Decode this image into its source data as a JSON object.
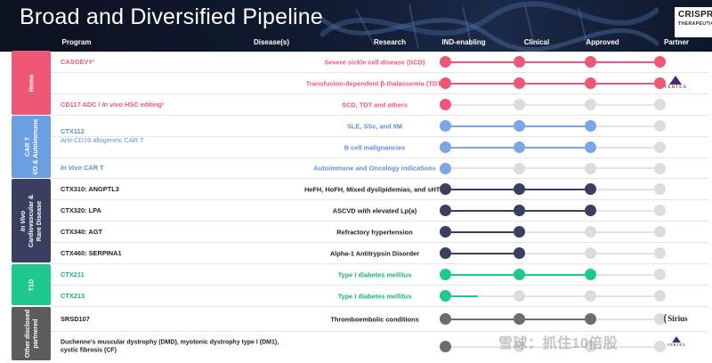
{
  "header": {
    "title": "Broad and Diversified Pipeline"
  },
  "logo": {
    "line1": "CRISPR",
    "line2": "THERAPEUTICS"
  },
  "columns": {
    "program": "Program",
    "disease": "Disease(s)",
    "research": "Research",
    "ind": "IND-enabling",
    "clinical": "Clinical",
    "approved": "Approved",
    "partner": "Partner"
  },
  "categories": [
    {
      "id": "heme",
      "line1": "Heme",
      "line2": "",
      "color": "#ef5776"
    },
    {
      "id": "cart",
      "line1": "CAR T",
      "line2": "I/O & Autoimmune",
      "color": "#6a9fe2"
    },
    {
      "id": "invivo",
      "line1": "In Vivo",
      "line2": "Cardiovascular &",
      "line3": "Rare Disease",
      "color": "#3a3f5f"
    },
    {
      "id": "t1d",
      "line1": "T1D",
      "line2": "",
      "color": "#1ec88e"
    },
    {
      "id": "other",
      "line1": "Other disclosed",
      "line2": "partnered",
      "color": "#5c5c5c"
    }
  ],
  "programs": [
    {
      "name": "CASGEVY¹",
      "sub": "",
      "disease": "Severe sickle cell disease (SCD)",
      "stage": 4,
      "color": "#ef5776"
    },
    {
      "name": "",
      "sub": "",
      "disease": "Transfusion-dependent β-thalassemia (TDT)",
      "stage": 4,
      "color": "#ef5776"
    },
    {
      "name": "CD117 ADC / ",
      "name_italic": "In vivo",
      "name_tail": " HSC editing²",
      "sub": "",
      "disease": "SCD, TDT and others",
      "stage": 0.5,
      "color": "#ef5776"
    },
    {
      "name": "CTX112",
      "sub": "Anti-CD19 allogeneic CAR T",
      "disease": "SLE, SSc, and IIM",
      "stage": 3,
      "color": "#7ba7e6"
    },
    {
      "name": "",
      "sub": "",
      "disease": "B cell malignancies",
      "stage": 3,
      "color": "#7ba7e6"
    },
    {
      "name": "",
      "name_italic": "In Vivo",
      "name_tail": " CAR T",
      "sub": "",
      "disease": "Autoimmune and Oncology indications",
      "stage": 1,
      "color": "#7ba7e6"
    },
    {
      "name": "CTX310: ANGPTL3",
      "sub": "",
      "disease": "HeFH, HoFH, Mixed dyslipidemias, and sHTG",
      "stage": 3,
      "color": "#3a3f5f"
    },
    {
      "name": "CTX320: LPA",
      "sub": "",
      "disease": "ASCVD with elevated Lp(a)",
      "stage": 3,
      "color": "#3a3f5f"
    },
    {
      "name": "CTX340: AGT",
      "sub": "",
      "disease": "Refractory hypertension",
      "stage": 2,
      "color": "#3a3f5f"
    },
    {
      "name": "CTX460: SERPINA1",
      "sub": "",
      "disease": "Alpha-1 Antitrypsin Disorder",
      "stage": 2,
      "color": "#3a3f5f"
    },
    {
      "name": "CTX211",
      "sub": "",
      "disease": "Type I diabetes mellitus",
      "stage": 3,
      "color": "#1ec88e"
    },
    {
      "name": "CTX213",
      "sub": "",
      "disease": "Type I diabetes mellitus",
      "stage": 1.45,
      "color": "#1ec88e"
    },
    {
      "name": "SRSD107",
      "sub": "",
      "disease": "Thromboembolic conditions",
      "stage": 3,
      "color": "#6d6d6d"
    },
    {
      "name": "Duchenne's muscular dystrophy (DMD), myotonic dystrophy type I (DM1),",
      "sub": "cystic fibrosis (CF)",
      "disease": "",
      "stage": 1,
      "color": "#6d6d6d"
    }
  ],
  "partners": {
    "vertex": "VERTEX",
    "sirius": "Sirius"
  },
  "watermark": "雪球：抓住10倍股",
  "colors": {
    "inactive_dot": "#dcdcdc",
    "inactive_line": "#e4e4e4"
  }
}
